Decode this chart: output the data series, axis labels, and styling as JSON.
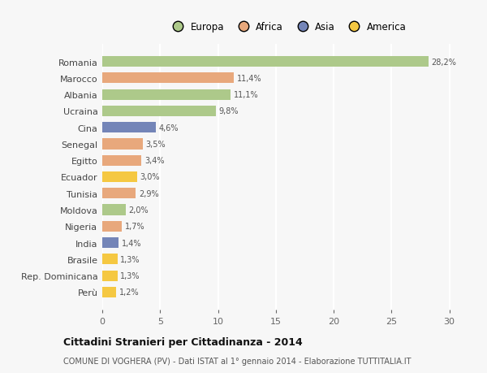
{
  "countries": [
    "Romania",
    "Marocco",
    "Albania",
    "Ucraina",
    "Cina",
    "Senegal",
    "Egitto",
    "Ecuador",
    "Tunisia",
    "Moldova",
    "Nigeria",
    "India",
    "Brasile",
    "Rep. Dominicana",
    "Perù"
  ],
  "values": [
    28.2,
    11.4,
    11.1,
    9.8,
    4.6,
    3.5,
    3.4,
    3.0,
    2.9,
    2.0,
    1.7,
    1.4,
    1.3,
    1.3,
    1.2
  ],
  "labels": [
    "28,2%",
    "11,4%",
    "11,1%",
    "9,8%",
    "4,6%",
    "3,5%",
    "3,4%",
    "3,0%",
    "2,9%",
    "2,0%",
    "1,7%",
    "1,4%",
    "1,3%",
    "1,3%",
    "1,2%"
  ],
  "categories": [
    "Europa",
    "Africa",
    "Europa",
    "Europa",
    "Asia",
    "Africa",
    "Africa",
    "America",
    "Africa",
    "Europa",
    "Africa",
    "Asia",
    "America",
    "America",
    "America"
  ],
  "colors": {
    "Europa": "#adc98a",
    "Africa": "#e8a87c",
    "Asia": "#7485b8",
    "America": "#f5c842"
  },
  "legend_order": [
    "Europa",
    "Africa",
    "Asia",
    "America"
  ],
  "bg_color": "#f7f7f7",
  "title": "Cittadini Stranieri per Cittadinanza - 2014",
  "subtitle": "COMUNE DI VOGHERA (PV) - Dati ISTAT al 1° gennaio 2014 - Elaborazione TUTTITALIA.IT",
  "xlim": [
    0,
    32
  ],
  "xticks": [
    0,
    5,
    10,
    15,
    20,
    25,
    30
  ],
  "grid_color": "#ffffff",
  "bar_height": 0.65
}
